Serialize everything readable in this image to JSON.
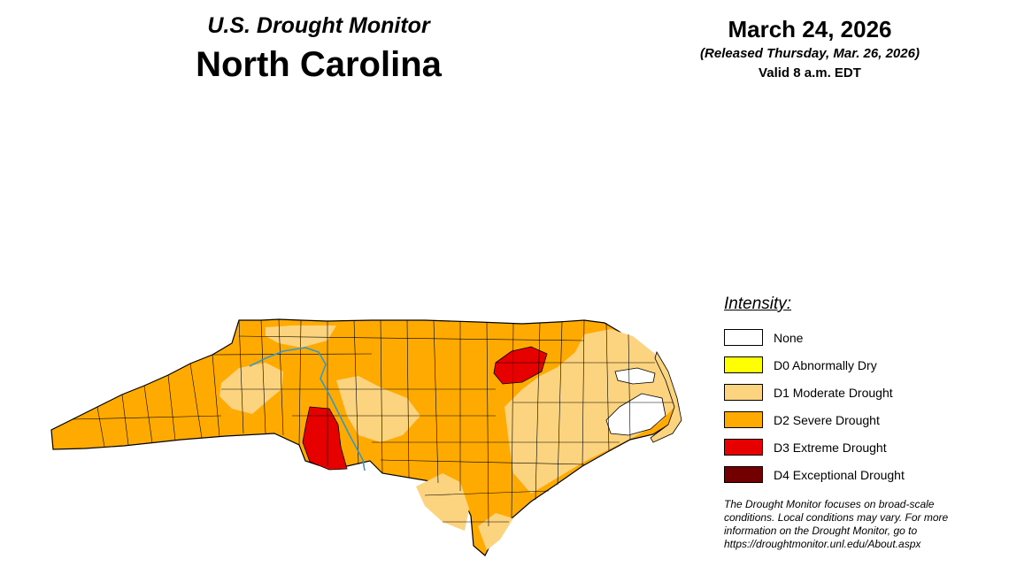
{
  "header": {
    "title_top": "U.S. Drought Monitor",
    "title_main": "North Carolina",
    "date": "March 24, 2026",
    "released": "(Released Thursday, Mar. 26, 2026)",
    "valid": "Valid 8 a.m. EDT"
  },
  "legend": {
    "title": "Intensity:",
    "items": [
      {
        "label": "None",
        "color": "#ffffff"
      },
      {
        "label": "D0 Abnormally Dry",
        "color": "#ffff00"
      },
      {
        "label": "D1 Moderate Drought",
        "color": "#fcd37f"
      },
      {
        "label": "D2 Severe Drought",
        "color": "#ffaa00"
      },
      {
        "label": "D3 Extreme Drought",
        "color": "#e60000"
      },
      {
        "label": "D4 Exceptional Drought",
        "color": "#730000"
      }
    ]
  },
  "footnote": {
    "line1": "The Drought Monitor focuses on broad-scale",
    "line2": "conditions. Local conditions may vary. For more",
    "line3": "information on the Drought Monitor, go to",
    "line4": "https://droughtmonitor.unl.edu/About.aspx"
  },
  "map": {
    "state": "North Carolina",
    "river_color": "#3399cc",
    "border_color": "#000000"
  }
}
